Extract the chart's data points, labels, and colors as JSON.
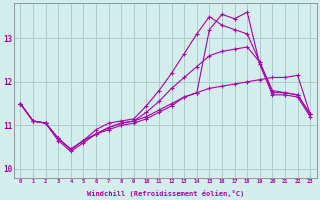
{
  "xlabel": "Windchill (Refroidissement éolien,°C)",
  "bg_color": "#d4eeee",
  "grid_color": "#aacccc",
  "line_color": "#aa00aa",
  "spine_color": "#888888",
  "xlim": [
    -0.5,
    23.5
  ],
  "ylim": [
    9.8,
    13.8
  ],
  "xticks": [
    0,
    1,
    2,
    3,
    4,
    5,
    6,
    7,
    8,
    9,
    10,
    11,
    12,
    13,
    14,
    15,
    16,
    17,
    18,
    19,
    20,
    21,
    22,
    23
  ],
  "yticks": [
    10,
    11,
    12,
    13
  ],
  "series": [
    {
      "x": [
        0,
        1,
        2,
        3,
        4,
        5,
        6,
        7,
        8,
        9,
        10,
        11,
        12,
        13,
        14,
        15,
        16,
        17,
        18,
        19,
        20,
        21,
        22,
        23
      ],
      "y": [
        11.5,
        11.1,
        11.05,
        10.7,
        10.45,
        10.65,
        10.8,
        10.95,
        11.05,
        11.1,
        11.2,
        11.35,
        11.5,
        11.65,
        11.75,
        11.85,
        11.9,
        11.95,
        12.0,
        12.05,
        12.1,
        12.1,
        12.15,
        11.25
      ]
    },
    {
      "x": [
        0,
        1,
        2,
        3,
        4,
        5,
        6,
        7,
        8,
        9,
        10,
        11,
        12,
        13,
        14,
        15,
        16,
        17,
        18,
        19,
        20,
        21,
        22,
        23
      ],
      "y": [
        11.5,
        11.1,
        11.05,
        10.7,
        10.45,
        10.65,
        10.8,
        10.95,
        11.05,
        11.1,
        11.3,
        11.55,
        11.85,
        12.1,
        12.35,
        12.6,
        12.7,
        12.75,
        12.8,
        12.45,
        11.8,
        11.75,
        11.7,
        11.25
      ]
    },
    {
      "x": [
        0,
        1,
        2,
        3,
        4,
        5,
        6,
        7,
        8,
        9,
        10,
        11,
        12,
        13,
        14,
        15,
        16,
        17,
        18,
        19,
        20,
        21,
        22,
        23
      ],
      "y": [
        11.5,
        11.1,
        11.05,
        10.7,
        10.45,
        10.65,
        10.9,
        11.05,
        11.1,
        11.15,
        11.45,
        11.8,
        12.2,
        12.65,
        13.1,
        13.5,
        13.3,
        13.2,
        13.1,
        12.45,
        11.75,
        11.75,
        11.7,
        11.25
      ]
    },
    {
      "x": [
        0,
        1,
        2,
        3,
        4,
        5,
        6,
        7,
        8,
        9,
        10,
        11,
        12,
        13,
        14,
        15,
        16,
        17,
        18,
        19,
        20,
        21,
        22,
        23
      ],
      "y": [
        11.5,
        11.1,
        11.05,
        10.65,
        10.4,
        10.6,
        10.8,
        10.9,
        11.0,
        11.05,
        11.15,
        11.3,
        11.45,
        11.65,
        11.75,
        13.2,
        13.55,
        13.45,
        13.6,
        12.4,
        11.7,
        11.7,
        11.65,
        11.2
      ]
    }
  ]
}
